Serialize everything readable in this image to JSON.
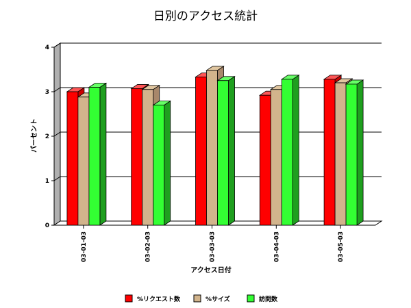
{
  "chart_data": {
    "type": "bar",
    "title": "日別のアクセス統計",
    "xlabel": "アクセス日付",
    "ylabel": "パーセント",
    "ylim": [
      0,
      4
    ],
    "yticks": [
      "0",
      "1",
      "2",
      "3",
      "4"
    ],
    "categories": [
      "03-01-03",
      "03-02-03",
      "03-03-03",
      "03-04-03",
      "03-05-03"
    ],
    "series": [
      {
        "name": "%リクエスト数",
        "color": "#ff0000",
        "side": "#cc0000",
        "top": "#ff5555",
        "values": [
          3.0,
          3.07,
          3.33,
          2.92,
          3.28
        ]
      },
      {
        "name": "%サイズ",
        "color": "#d2b48c",
        "side": "#a8876a",
        "top": "#e0c6a0",
        "values": [
          2.88,
          3.05,
          3.48,
          3.05,
          3.2
        ]
      },
      {
        "name": "訪問数",
        "color": "#33ff33",
        "side": "#1f9f1f",
        "top": "#66ff66",
        "values": [
          3.1,
          2.7,
          3.25,
          3.28,
          3.17
        ]
      }
    ],
    "grid": true,
    "legend": "bottom"
  }
}
